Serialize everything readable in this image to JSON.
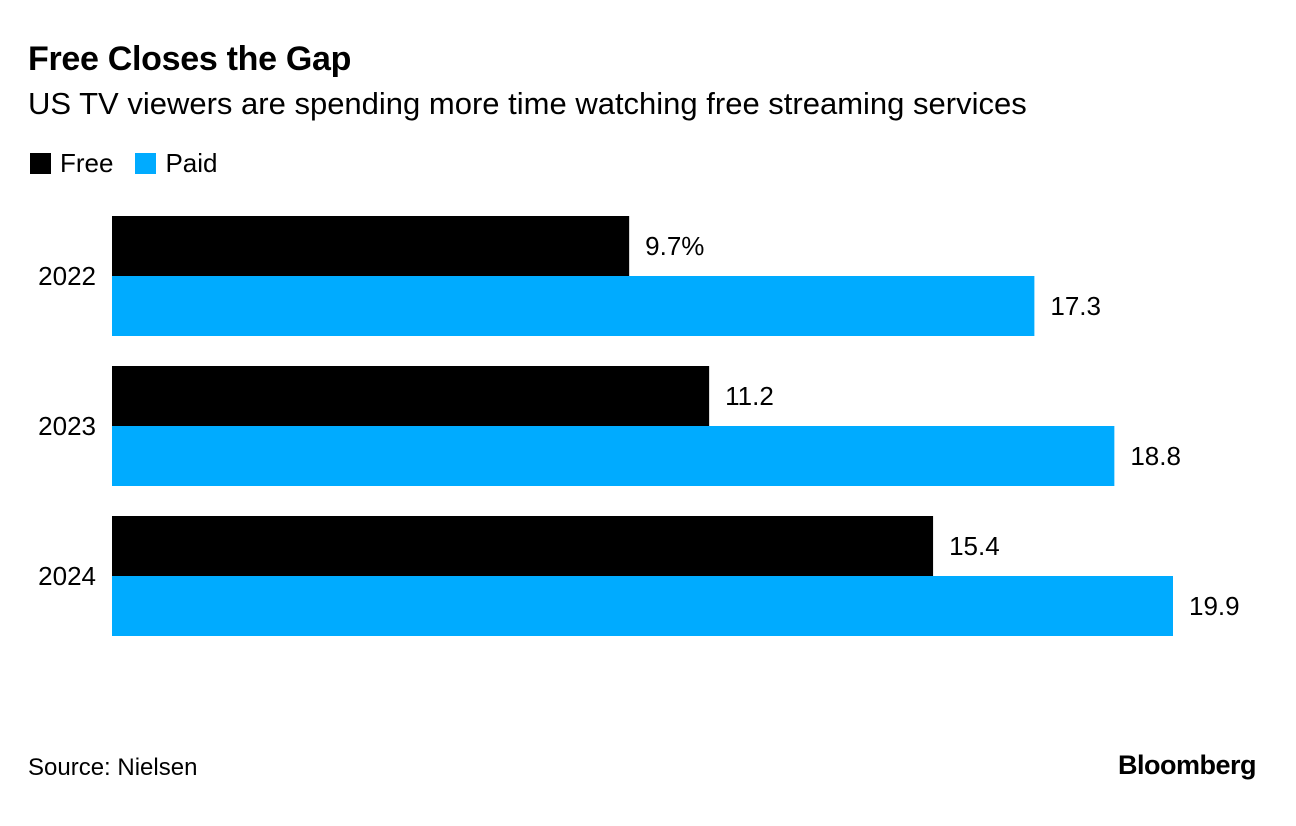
{
  "title": "Free Closes the Gap",
  "subtitle": "US TV viewers are spending more time watching free streaming services",
  "legend": [
    {
      "label": "Free",
      "color": "#000000"
    },
    {
      "label": "Paid",
      "color": "#00abff"
    }
  ],
  "source": "Source: Nielsen",
  "brand": "Bloomberg",
  "chart_data": {
    "type": "bar",
    "orientation": "horizontal",
    "title": "Free Closes the Gap",
    "subtitle": "US TV viewers are spending more time watching free streaming services",
    "categories": [
      "2022",
      "2023",
      "2024"
    ],
    "series": [
      {
        "name": "Free",
        "color": "#000000",
        "values": [
          9.7,
          11.2,
          15.4
        ],
        "labels": [
          "9.7%",
          "11.2",
          "15.4"
        ]
      },
      {
        "name": "Paid",
        "color": "#00abff",
        "values": [
          17.3,
          18.8,
          19.9
        ],
        "labels": [
          "17.3",
          "18.8",
          "19.9"
        ]
      }
    ],
    "xlim": [
      0,
      19.9
    ],
    "xlabel": "",
    "ylabel": "",
    "grid": false,
    "legend_position": "top-left"
  }
}
